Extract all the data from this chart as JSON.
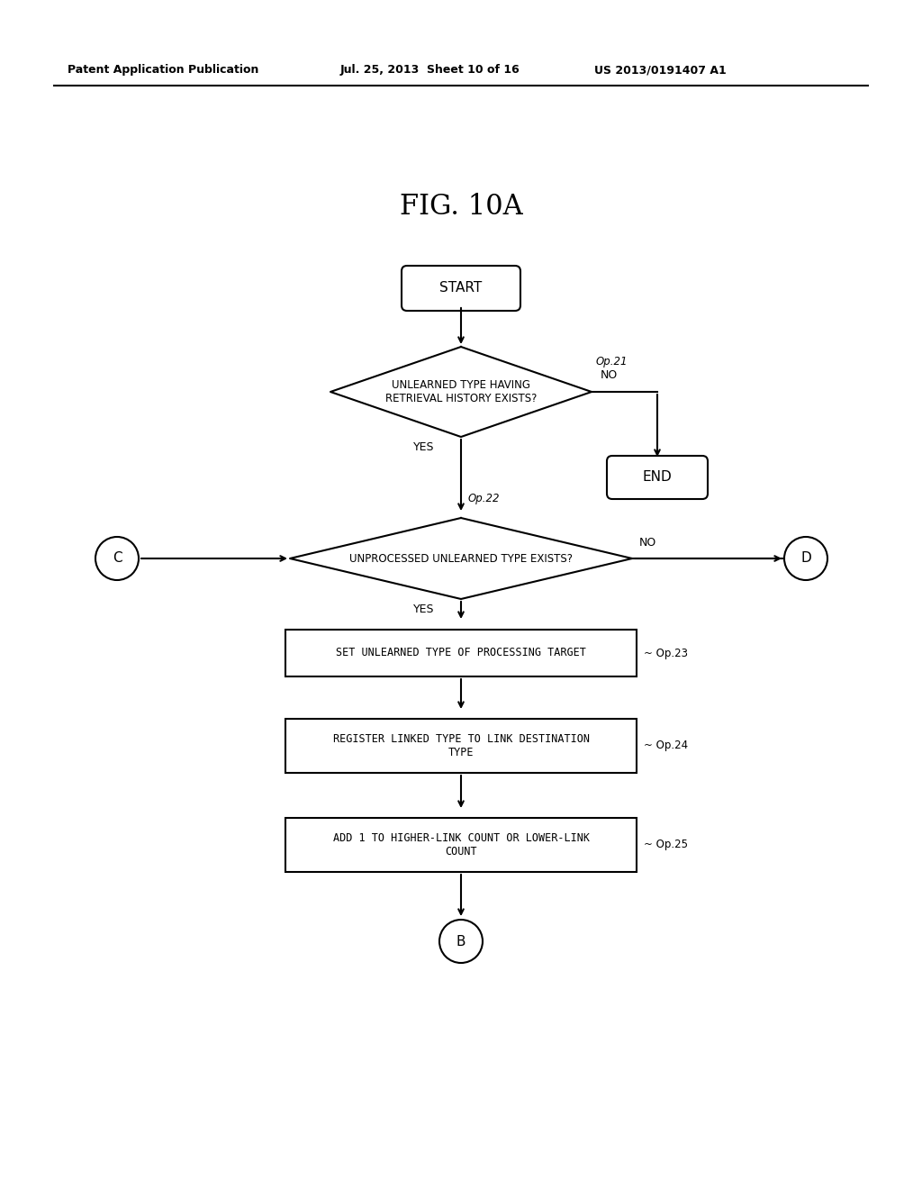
{
  "title": "FIG. 10A",
  "header_left": "Patent Application Publication",
  "header_mid": "Jul. 25, 2013  Sheet 10 of 16",
  "header_right": "US 2013/0191407 A1",
  "bg_color": "#ffffff",
  "line_color": "#000000",
  "text_color": "#000000",
  "fig_width": 10.24,
  "fig_height": 13.2,
  "dpi": 100
}
